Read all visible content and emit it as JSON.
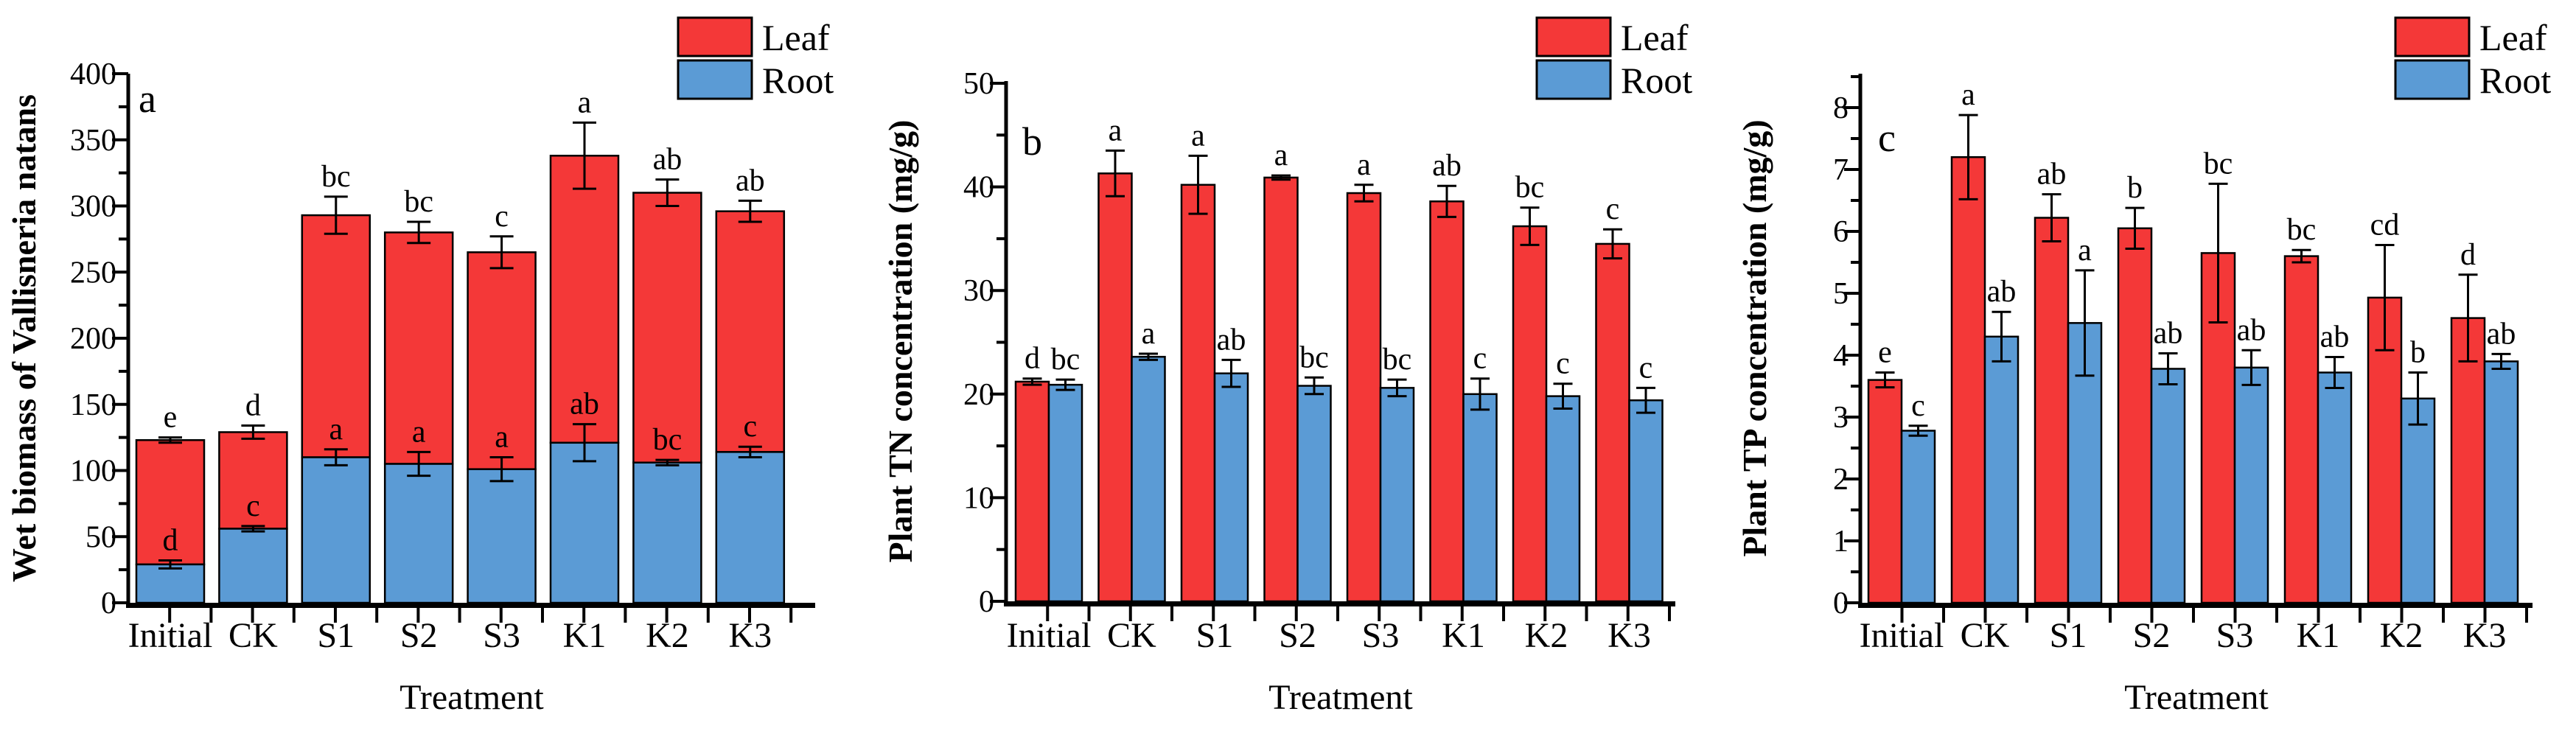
{
  "figure": {
    "background": "#ffffff",
    "legend": {
      "items": [
        {
          "label": "Leaf",
          "color": "#f43838"
        },
        {
          "label": "Root",
          "color": "#5b9bd5"
        }
      ],
      "position": "top-right"
    }
  },
  "chart_data": [
    {
      "type": "bar",
      "stacked": true,
      "panel_label": "a",
      "xlabel": "Treatment",
      "ylabel": "Wet biomass of Vallisneria natans",
      "ylim": [
        0,
        400
      ],
      "ytick_major": 50,
      "ytick_minor": 25,
      "grid": false,
      "legend_position": "top-right",
      "categories": [
        "Initial",
        "CK",
        "S1",
        "S2",
        "S3",
        "K1",
        "K2",
        "K3"
      ],
      "series": [
        {
          "name": "Root",
          "color": "#5b9bd5",
          "values": [
            29,
            56,
            110,
            105,
            101,
            121,
            106,
            114
          ],
          "errors": [
            3,
            2,
            6,
            9,
            9,
            14,
            2,
            4
          ],
          "letters": [
            "d",
            "c",
            "a",
            "a",
            "a",
            "ab",
            "bc",
            "c"
          ]
        },
        {
          "name": "Leaf",
          "color": "#f43838",
          "values": [
            94,
            73,
            183,
            175,
            164,
            217,
            204,
            182
          ],
          "errors": [],
          "letters": []
        }
      ],
      "totals": [
        123,
        129,
        293,
        280,
        265,
        338,
        310,
        296
      ],
      "total_errors": [
        2,
        5,
        14,
        8,
        12,
        25,
        10,
        8
      ],
      "total_letters": [
        "e",
        "d",
        "bc",
        "bc",
        "c",
        "a",
        "ab",
        "ab"
      ]
    },
    {
      "type": "bar",
      "stacked": false,
      "panel_label": "b",
      "xlabel": "Treatment",
      "ylabel": "Plant TN concentration (mg/g)",
      "ylim": [
        0,
        50
      ],
      "ytick_major": 10,
      "ytick_minor": 5,
      "grid": false,
      "legend_position": "top-right",
      "categories": [
        "Initial",
        "CK",
        "S1",
        "S2",
        "S3",
        "K1",
        "K2",
        "K3"
      ],
      "series": [
        {
          "name": "Leaf",
          "color": "#f43838",
          "values": [
            21.2,
            41.3,
            40.2,
            40.9,
            39.4,
            38.6,
            36.2,
            34.5
          ],
          "errors": [
            0.3,
            2.2,
            2.8,
            0.2,
            0.8,
            1.5,
            1.8,
            1.4
          ],
          "letters": [
            "d",
            "a",
            "a",
            "a",
            "a",
            "ab",
            "bc",
            "c"
          ]
        },
        {
          "name": "Root",
          "color": "#5b9bd5",
          "values": [
            20.9,
            23.6,
            22.0,
            20.8,
            20.6,
            20.0,
            19.8,
            19.4
          ],
          "errors": [
            0.5,
            0.3,
            1.3,
            0.8,
            0.8,
            1.5,
            1.2,
            1.2
          ],
          "letters": [
            "bc",
            "a",
            "ab",
            "bc",
            "bc",
            "c",
            "c",
            "c"
          ]
        }
      ]
    },
    {
      "type": "bar",
      "stacked": false,
      "panel_label": "c",
      "xlabel": "Treatment",
      "ylabel": "Plant TP concentration (mg/g)",
      "ylim": [
        0,
        8
      ],
      "ytick_major": 1,
      "ytick_minor": 0.5,
      "grid": false,
      "legend_position": "top-right",
      "categories": [
        "Initial",
        "CK",
        "S1",
        "S2",
        "S3",
        "K1",
        "K2",
        "K3"
      ],
      "series": [
        {
          "name": "Leaf",
          "color": "#f43838",
          "values": [
            3.6,
            7.2,
            6.22,
            6.05,
            5.65,
            5.6,
            4.93,
            4.6
          ],
          "errors": [
            0.12,
            0.68,
            0.38,
            0.33,
            1.12,
            0.1,
            0.85,
            0.7
          ],
          "letters": [
            "e",
            "a",
            "ab",
            "b",
            "bc",
            "bc",
            "cd",
            "d"
          ]
        },
        {
          "name": "Root",
          "color": "#5b9bd5",
          "values": [
            2.78,
            4.3,
            4.52,
            3.78,
            3.8,
            3.72,
            3.3,
            3.9
          ],
          "errors": [
            0.08,
            0.4,
            0.85,
            0.25,
            0.28,
            0.25,
            0.42,
            0.12
          ],
          "letters": [
            "c",
            "ab",
            "a",
            "ab",
            "ab",
            "ab",
            "b",
            "ab"
          ]
        }
      ]
    }
  ]
}
